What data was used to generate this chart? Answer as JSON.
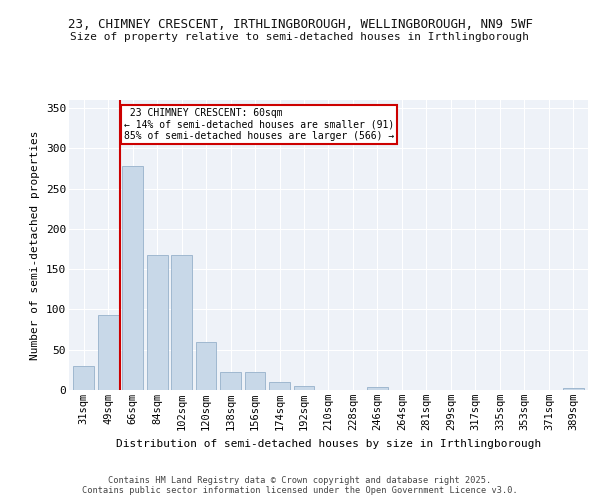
{
  "title1": "23, CHIMNEY CRESCENT, IRTHLINGBOROUGH, WELLINGBOROUGH, NN9 5WF",
  "title2": "Size of property relative to semi-detached houses in Irthlingborough",
  "xlabel": "Distribution of semi-detached houses by size in Irthlingborough",
  "ylabel": "Number of semi-detached properties",
  "categories": [
    "31sqm",
    "49sqm",
    "66sqm",
    "84sqm",
    "102sqm",
    "120sqm",
    "138sqm",
    "156sqm",
    "174sqm",
    "192sqm",
    "210sqm",
    "228sqm",
    "246sqm",
    "264sqm",
    "281sqm",
    "299sqm",
    "317sqm",
    "335sqm",
    "353sqm",
    "371sqm",
    "389sqm"
  ],
  "values": [
    30,
    93,
    278,
    167,
    167,
    60,
    22,
    22,
    10,
    5,
    0,
    0,
    4,
    0,
    0,
    0,
    0,
    0,
    0,
    0,
    2
  ],
  "bar_color": "#c8d8e8",
  "bar_edge_color": "#a0b8d0",
  "marker_label": "23 CHIMNEY CRESCENT: 60sqm",
  "smaller_pct": "14%",
  "smaller_count": 91,
  "larger_pct": "85%",
  "larger_count": 566,
  "vline_color": "#cc0000",
  "annotation_box_color": "#cc0000",
  "ylim": [
    0,
    360
  ],
  "yticks": [
    0,
    50,
    100,
    150,
    200,
    250,
    300,
    350
  ],
  "bg_color": "#eef2f8",
  "fig_color": "#ffffff",
  "footer1": "Contains HM Land Registry data © Crown copyright and database right 2025.",
  "footer2": "Contains public sector information licensed under the Open Government Licence v3.0."
}
